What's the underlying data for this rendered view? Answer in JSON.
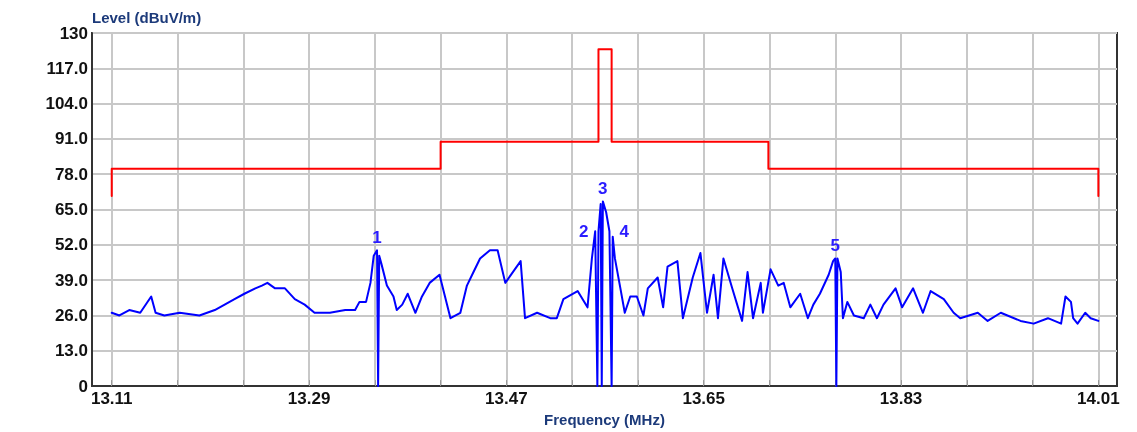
{
  "chart_data": {
    "type": "line",
    "xlabel": "Frequency (MHz)",
    "ylabel": "Level (dBuV/m)",
    "xlim": [
      13.092,
      14.027
    ],
    "ylim": [
      0,
      130
    ],
    "xticks": [
      13.11,
      {
        "value": 13.17,
        "label": null
      },
      {
        "value": 13.23,
        "label": null
      },
      13.29,
      {
        "value": 13.35,
        "label": null
      },
      {
        "value": 13.41,
        "label": null
      },
      13.47,
      {
        "value": 13.53,
        "label": null
      },
      {
        "value": 13.59,
        "label": null
      },
      13.65,
      {
        "value": 13.71,
        "label": null
      },
      {
        "value": 13.77,
        "label": null
      },
      13.83,
      {
        "value": 13.89,
        "label": null
      },
      {
        "value": 13.95,
        "label": null
      },
      14.01
    ],
    "yticks": [
      0,
      {
        "value": 13,
        "label": "13.0"
      },
      {
        "value": 26,
        "label": "26.0"
      },
      {
        "value": 39,
        "label": "39.0"
      },
      {
        "value": 52,
        "label": "52.0"
      },
      {
        "value": 65,
        "label": "65.0"
      },
      {
        "value": 78,
        "label": "78.0"
      },
      {
        "value": 91,
        "label": "91.0"
      },
      {
        "value": 104,
        "label": "104.0"
      },
      {
        "value": 117,
        "label": "117.0"
      },
      130
    ],
    "grid": true,
    "marker": "none",
    "line_style": "solid",
    "series": [
      {
        "color": "#ff0000",
        "x": [
          13.11,
          13.11,
          13.41,
          13.41,
          13.554,
          13.554,
          13.566,
          13.566,
          13.709,
          13.709,
          14.01,
          14.01
        ],
        "values": [
          70,
          80,
          80,
          90,
          90,
          124,
          124,
          90,
          90,
          80,
          80,
          70
        ]
      },
      {
        "color": "#0000ff",
        "x": [
          13.11,
          13.117,
          13.126,
          13.136,
          13.146,
          13.15,
          13.158,
          13.172,
          13.19,
          13.204,
          13.213,
          13.222,
          13.231,
          13.241,
          13.247,
          13.252,
          13.259,
          13.268,
          13.277,
          13.286,
          13.295,
          13.309,
          13.323,
          13.332,
          13.336,
          13.342,
          13.346,
          13.349,
          13.352,
          13.353,
          13.354,
          13.356,
          13.361,
          13.367,
          13.37,
          13.375,
          13.38,
          13.387,
          13.393,
          13.4,
          13.409,
          13.419,
          13.428,
          13.434,
          13.44,
          13.446,
          13.455,
          13.462,
          13.469,
          13.483,
          13.487,
          13.498,
          13.51,
          13.516,
          13.522,
          13.535,
          13.544,
          13.548,
          13.551,
          13.553,
          13.554,
          13.556,
          13.557,
          13.558,
          13.561,
          13.564,
          13.566,
          13.567,
          13.569,
          13.574,
          13.578,
          13.583,
          13.589,
          13.595,
          13.599,
          13.608,
          13.613,
          13.617,
          13.626,
          13.631,
          13.64,
          13.647,
          13.653,
          13.659,
          13.663,
          13.668,
          13.676,
          13.685,
          13.69,
          13.695,
          13.702,
          13.704,
          13.711,
          13.718,
          13.723,
          13.729,
          13.738,
          13.745,
          13.75,
          13.756,
          13.764,
          13.768,
          13.77,
          13.771,
          13.772,
          13.775,
          13.777,
          13.781,
          13.787,
          13.796,
          13.802,
          13.808,
          13.814,
          13.825,
          13.831,
          13.841,
          13.85,
          13.857,
          13.869,
          13.878,
          13.884,
          13.9,
          13.909,
          13.921,
          13.939,
          13.951,
          13.964,
          13.976,
          13.98,
          13.985,
          13.987,
          13.991,
          13.998,
          14.003,
          14.01
        ],
        "values": [
          27,
          26,
          28,
          27,
          33,
          27,
          26,
          27,
          26,
          28,
          30,
          32,
          34,
          36,
          37,
          38,
          36,
          36,
          32,
          30,
          27,
          27,
          28,
          28,
          31,
          31,
          38,
          48,
          50,
          0,
          48,
          45,
          37,
          33,
          28,
          30,
          34,
          27,
          33,
          38,
          41,
          25,
          27,
          37,
          42,
          47,
          50,
          50,
          38,
          46,
          25,
          27,
          25,
          25,
          32,
          35,
          29,
          47,
          57,
          0,
          57,
          67,
          0,
          68,
          64,
          57,
          0,
          55,
          47,
          36,
          27,
          33,
          33,
          26,
          36,
          40,
          29,
          44,
          46,
          25,
          40,
          49,
          27,
          41,
          25,
          47,
          36,
          24,
          42,
          25,
          38,
          27,
          43,
          37,
          38,
          29,
          34,
          25,
          30,
          34,
          41,
          46,
          47,
          0,
          47,
          42,
          25,
          31,
          26,
          25,
          30,
          25,
          30,
          36,
          29,
          36,
          27,
          35,
          32,
          27,
          25,
          27,
          24,
          27,
          24,
          23,
          25,
          23,
          33,
          31,
          25,
          23,
          27,
          25,
          24
        ]
      }
    ],
    "annotations": [
      {
        "text": "1",
        "x": 13.352,
        "y": 50
      },
      {
        "text": "2",
        "x": 13.554,
        "y": 57
      },
      {
        "text": "3",
        "x": 13.558,
        "y": 68
      },
      {
        "text": "4",
        "x": 13.564,
        "y": 57
      },
      {
        "text": "5",
        "x": 13.77,
        "y": 47
      }
    ]
  }
}
